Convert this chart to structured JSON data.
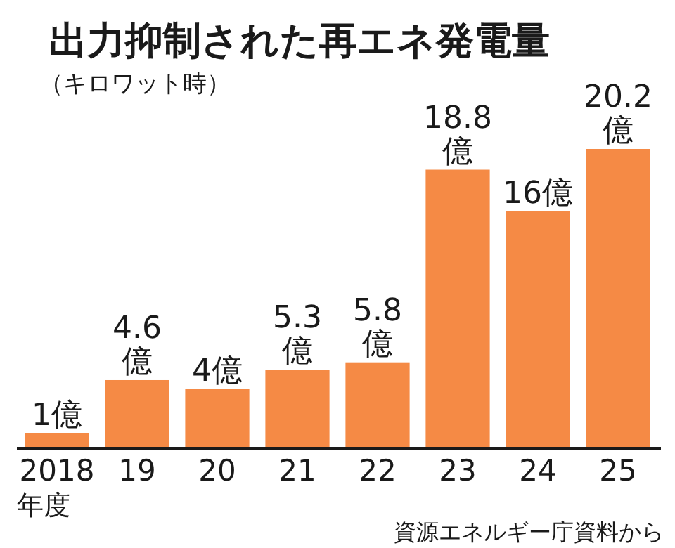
{
  "chart_data": {
    "type": "bar",
    "title": "出力抑制された再エネ発電量",
    "subtitle": "（キロワット時）",
    "xlabel": "年度",
    "categories": [
      "2018",
      "19",
      "20",
      "21",
      "22",
      "23",
      "24",
      "25"
    ],
    "values": [
      1,
      4.6,
      4,
      5.3,
      5.8,
      18.8,
      16,
      20.2
    ],
    "value_labels": [
      "1億",
      "4.6億",
      "4億",
      "5.3億",
      "5.8億",
      "18.8億",
      "16億",
      "20.2億"
    ],
    "color": "#f58a45",
    "annotations": [
      "資源エネルギー庁資料から"
    ]
  }
}
